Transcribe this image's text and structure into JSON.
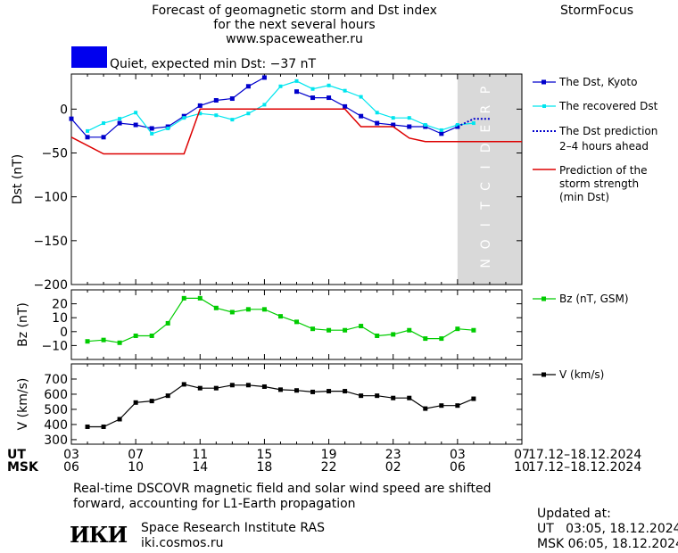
{
  "header": {
    "title_line1": "Forecast of geomagnetic storm and Dst index",
    "title_line2": "for the next several hours",
    "url": "www.spaceweather.ru",
    "brand": "StormFocus",
    "status_text": "Quiet, expected min Dst: −37 nT",
    "status_color": "#0000ee"
  },
  "prediction_label": "PREDICTION",
  "colors": {
    "dst_kyoto": "#0000cc",
    "dst_recovered": "#00e5ee",
    "dst_prediction": "#0000cc",
    "storm_strength": "#dd0000",
    "bz": "#00cc00",
    "v": "#000000",
    "prediction_band": "#d9d9d9"
  },
  "legend": {
    "kyoto": "The Dst, Kyoto",
    "recovered": "The recovered Dst",
    "prediction_l1": "The Dst prediction",
    "prediction_l2": "2–4 hours ahead",
    "strength_l1": "Prediction of the",
    "strength_l2": "storm strength",
    "strength_l3": "(min Dst)",
    "bz": "Bz (nT, GSM)",
    "v": "V (km/s)"
  },
  "time_axis": {
    "ut_label": "UT",
    "msk_label": "MSK",
    "ut_ticks": [
      "03",
      "07",
      "11",
      "15",
      "19",
      "23",
      "03",
      "07"
    ],
    "msk_ticks": [
      "06",
      "10",
      "14",
      "18",
      "22",
      "02",
      "06",
      "10"
    ],
    "ut_range": "17.12–18.12.2024",
    "msk_range": "17.12–18.12.2024"
  },
  "footer": {
    "note_line1": "Real-time DSCOVR magnetic field and solar wind speed are shifted",
    "note_line2": "forward, accounting for L1-Earth propagation",
    "logo": "ИКИ",
    "institute": "Space Research Institute RAS",
    "site": "iki.cosmos.ru",
    "updated_label": "Updated at:",
    "updated_ut": "UT   03:05, 18.12.2024",
    "updated_msk": "MSK 06:05, 18.12.2024"
  },
  "chart_data": [
    {
      "type": "line",
      "title": "Dst",
      "ylabel": "Dst (nT)",
      "ylim": [
        -200,
        40
      ],
      "xlim": [
        3,
        31
      ],
      "yticks": [
        "0",
        "−50",
        "−100",
        "−150",
        "−200"
      ],
      "ytick_values": [
        0,
        -50,
        -100,
        -150,
        -200
      ],
      "prediction_band": [
        27,
        31
      ],
      "series": [
        {
          "name": "The Dst, Kyoto",
          "x": [
            3,
            4,
            5,
            6,
            7,
            8,
            9,
            10,
            11,
            12,
            13,
            14,
            15,
            16,
            17,
            18,
            19,
            20,
            21,
            22,
            23,
            24,
            25,
            26,
            27
          ],
          "values": [
            -11,
            -32,
            -32,
            -16,
            -18,
            -22,
            -20,
            -8,
            4,
            10,
            12,
            26,
            36,
            null,
            20,
            13,
            13,
            3,
            -8,
            -16,
            -18,
            -20,
            -20,
            -28,
            -20
          ]
        },
        {
          "name": "The recovered Dst",
          "x": [
            4,
            5,
            6,
            7,
            8,
            9,
            10,
            11,
            12,
            13,
            14,
            15,
            16,
            17,
            18,
            19,
            20,
            21,
            22,
            23,
            24,
            25,
            26,
            27,
            28
          ],
          "values": [
            -25,
            -16,
            -11,
            -4,
            -28,
            -22,
            -10,
            -5,
            -7,
            -12,
            -5,
            5,
            26,
            32,
            23,
            27,
            21,
            14,
            -4,
            -10,
            -10,
            -18,
            -24,
            -18,
            -16
          ]
        },
        {
          "name": "The Dst prediction 2–4 hours ahead",
          "x": [
            27,
            28,
            29
          ],
          "values": [
            -20,
            -11,
            -11
          ]
        },
        {
          "name": "Prediction of the storm strength (min Dst)",
          "x": [
            3,
            5,
            10,
            11,
            20,
            21,
            23,
            24,
            25,
            27,
            31
          ],
          "values": [
            -32,
            -51,
            -51,
            0,
            0,
            -20,
            -20,
            -33,
            -37,
            -37,
            -37
          ]
        }
      ]
    },
    {
      "type": "line",
      "title": "Bz",
      "ylabel": "Bz (nT)",
      "ylim": [
        -20,
        30
      ],
      "xlim": [
        3,
        31
      ],
      "yticks": [
        "20",
        "10",
        "0",
        "−10"
      ],
      "ytick_values": [
        20,
        10,
        0,
        -10
      ],
      "series": [
        {
          "name": "Bz (nT, GSM)",
          "x": [
            4,
            5,
            6,
            7,
            8,
            9,
            10,
            11,
            12,
            13,
            14,
            15,
            16,
            17,
            18,
            19,
            20,
            21,
            22,
            23,
            24,
            25,
            26,
            27,
            28
          ],
          "values": [
            -7,
            -6,
            -8,
            -3,
            -3,
            6,
            24,
            24,
            17,
            14,
            16,
            16,
            11,
            7,
            2,
            1,
            1,
            4,
            -3,
            -2,
            1,
            -5,
            -5,
            2,
            1
          ]
        }
      ]
    },
    {
      "type": "line",
      "title": "V",
      "ylabel": "V (km/s)",
      "ylim": [
        270,
        800
      ],
      "xlim": [
        3,
        31
      ],
      "yticks": [
        "700",
        "600",
        "500",
        "400",
        "300"
      ],
      "ytick_values": [
        700,
        600,
        500,
        400,
        300
      ],
      "series": [
        {
          "name": "V (km/s)",
          "x": [
            4,
            5,
            6,
            7,
            8,
            9,
            10,
            11,
            12,
            13,
            14,
            15,
            16,
            17,
            18,
            19,
            20,
            21,
            22,
            23,
            24,
            25,
            26,
            27,
            28
          ],
          "values": [
            385,
            385,
            435,
            545,
            555,
            590,
            665,
            640,
            640,
            660,
            660,
            650,
            630,
            625,
            615,
            620,
            620,
            590,
            590,
            575,
            575,
            505,
            525,
            525,
            570
          ]
        }
      ]
    }
  ]
}
